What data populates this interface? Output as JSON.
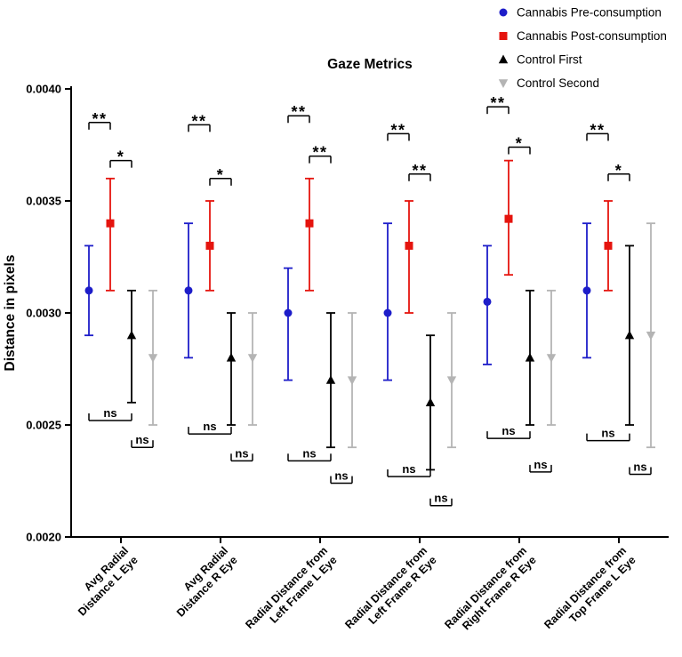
{
  "chart_data": {
    "type": "errorbar",
    "title": "Gaze Metrics",
    "ylabel": "Distance in pixels",
    "xlabel": "",
    "grid": false,
    "legend_position": "top-right",
    "ylim": [
      0.002,
      0.004
    ],
    "yticks": [
      0.002,
      0.0025,
      0.003,
      0.0035,
      0.004
    ],
    "ytick_labels": [
      "0.0020",
      "0.0025",
      "0.0030",
      "0.0035",
      "0.0040"
    ],
    "categories": [
      [
        "Avg Radial",
        "Distance L Eye"
      ],
      [
        "Avg Radial",
        "Distance R Eye"
      ],
      [
        "Radial Distance from",
        "Left Frame L Eye"
      ],
      [
        "Radial Distance from",
        "Left Frame R Eye"
      ],
      [
        "Radial Distance from",
        "Right Frame R Eye"
      ],
      [
        "Radial Distance from",
        "Top Frame L Eye"
      ]
    ],
    "series": [
      {
        "name": "Cannabis Pre-consumption",
        "color": "#1d1dc9",
        "marker": "circle",
        "mean": [
          0.0031,
          0.0031,
          0.003,
          0.003,
          0.00305,
          0.0031
        ],
        "lo": [
          0.0029,
          0.0028,
          0.0027,
          0.0027,
          0.00277,
          0.0028
        ],
        "hi": [
          0.0033,
          0.0034,
          0.0032,
          0.0034,
          0.0033,
          0.0034
        ]
      },
      {
        "name": "Cannabis Post-consumption",
        "color": "#e5140e",
        "marker": "square",
        "mean": [
          0.0034,
          0.0033,
          0.0034,
          0.0033,
          0.00342,
          0.0033
        ],
        "lo": [
          0.0031,
          0.0031,
          0.0031,
          0.003,
          0.00317,
          0.0031
        ],
        "hi": [
          0.0036,
          0.0035,
          0.0036,
          0.0035,
          0.00368,
          0.0035
        ]
      },
      {
        "name": "Control First",
        "color": "#000000",
        "marker": "triangle-up",
        "mean": [
          0.0029,
          0.0028,
          0.0027,
          0.0026,
          0.0028,
          0.0029
        ],
        "lo": [
          0.0026,
          0.0025,
          0.0024,
          0.0023,
          0.0025,
          0.0025
        ],
        "hi": [
          0.0031,
          0.003,
          0.003,
          0.0029,
          0.0031,
          0.0033
        ]
      },
      {
        "name": "Control Second",
        "color": "#b4b4b4",
        "marker": "triangle-down",
        "mean": [
          0.0028,
          0.0028,
          0.0027,
          0.0027,
          0.0028,
          0.0029
        ],
        "lo": [
          0.0025,
          0.0025,
          0.0024,
          0.0024,
          0.0025,
          0.0024
        ],
        "hi": [
          0.0031,
          0.003,
          0.003,
          0.003,
          0.0031,
          0.0034
        ]
      }
    ],
    "significance_brackets": [
      [
        {
          "a": 0,
          "b": 1,
          "label": "**",
          "y": 0.00385,
          "side": "top"
        },
        {
          "a": 1,
          "b": 2,
          "label": "*",
          "y": 0.00368,
          "side": "top"
        },
        {
          "a": 0,
          "b": 2,
          "label": "ns",
          "y": 0.00252,
          "side": "bottom"
        },
        {
          "a": 2,
          "b": 3,
          "label": "ns",
          "y": 0.0024,
          "side": "bottom"
        }
      ],
      [
        {
          "a": 0,
          "b": 1,
          "label": "**",
          "y": 0.00384,
          "side": "top"
        },
        {
          "a": 1,
          "b": 2,
          "label": "*",
          "y": 0.0036,
          "side": "top"
        },
        {
          "a": 0,
          "b": 2,
          "label": "ns",
          "y": 0.00246,
          "side": "bottom"
        },
        {
          "a": 2,
          "b": 3,
          "label": "ns",
          "y": 0.00234,
          "side": "bottom"
        }
      ],
      [
        {
          "a": 0,
          "b": 1,
          "label": "**",
          "y": 0.00388,
          "side": "top"
        },
        {
          "a": 1,
          "b": 2,
          "label": "**",
          "y": 0.0037,
          "side": "top"
        },
        {
          "a": 0,
          "b": 2,
          "label": "ns",
          "y": 0.00234,
          "side": "bottom"
        },
        {
          "a": 2,
          "b": 3,
          "label": "ns",
          "y": 0.00224,
          "side": "bottom"
        }
      ],
      [
        {
          "a": 0,
          "b": 1,
          "label": "**",
          "y": 0.0038,
          "side": "top"
        },
        {
          "a": 1,
          "b": 2,
          "label": "**",
          "y": 0.00362,
          "side": "top"
        },
        {
          "a": 0,
          "b": 2,
          "label": "ns",
          "y": 0.00227,
          "side": "bottom"
        },
        {
          "a": 2,
          "b": 3,
          "label": "ns",
          "y": 0.00214,
          "side": "bottom"
        }
      ],
      [
        {
          "a": 0,
          "b": 1,
          "label": "**",
          "y": 0.00392,
          "side": "top"
        },
        {
          "a": 1,
          "b": 2,
          "label": "*",
          "y": 0.00374,
          "side": "top"
        },
        {
          "a": 0,
          "b": 2,
          "label": "ns",
          "y": 0.00244,
          "side": "bottom"
        },
        {
          "a": 2,
          "b": 3,
          "label": "ns",
          "y": 0.00229,
          "side": "bottom"
        }
      ],
      [
        {
          "a": 0,
          "b": 1,
          "label": "**",
          "y": 0.0038,
          "side": "top"
        },
        {
          "a": 1,
          "b": 2,
          "label": "*",
          "y": 0.00362,
          "side": "top"
        },
        {
          "a": 0,
          "b": 2,
          "label": "ns",
          "y": 0.00243,
          "side": "bottom"
        },
        {
          "a": 2,
          "b": 3,
          "label": "ns",
          "y": 0.00228,
          "side": "bottom"
        }
      ]
    ]
  }
}
